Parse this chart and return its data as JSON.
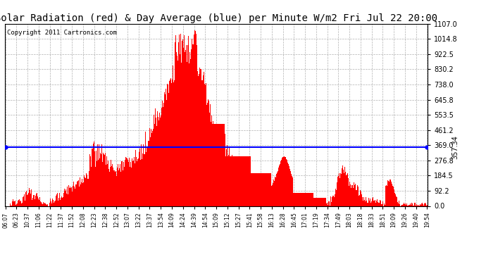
{
  "title": "Solar Radiation (red) & Day Average (blue) per Minute W/m2 Fri Jul 22 20:00",
  "copyright": "Copyright 2011 Cartronics.com",
  "y_max": 1107.0,
  "y_min": 0.0,
  "y_ticks": [
    0.0,
    92.2,
    184.5,
    276.8,
    369.0,
    461.2,
    553.5,
    645.8,
    738.0,
    830.2,
    922.5,
    1014.8,
    1107.0
  ],
  "y_tick_labels": [
    "0.0",
    "92.2",
    "184.5",
    "276.8",
    "369.0",
    "461.2",
    "553.5",
    "645.8",
    "738.0",
    "830.2",
    "922.5",
    "1014.8",
    "1107.0"
  ],
  "day_average": 357.34,
  "bar_color": "#ff0000",
  "avg_line_color": "#0000ff",
  "bg_color": "#ffffff",
  "grid_color": "#b0b0b0",
  "title_fontsize": 10,
  "copyright_fontsize": 6.5,
  "avg_label_fontsize": 7,
  "x_tick_fontsize": 5.5,
  "y_tick_fontsize": 7,
  "x_tick_labels": [
    "06:07",
    "06:23",
    "10:37",
    "11:06",
    "11:22",
    "11:37",
    "11:52",
    "12:08",
    "12:23",
    "12:38",
    "12:52",
    "13:07",
    "13:22",
    "13:37",
    "13:54",
    "14:09",
    "14:24",
    "14:39",
    "14:54",
    "15:09",
    "15:12",
    "15:27",
    "15:41",
    "15:58",
    "16:13",
    "16:28",
    "16:45",
    "17:01",
    "17:19",
    "17:34",
    "17:49",
    "18:03",
    "18:18",
    "18:33",
    "18:51",
    "19:09",
    "19:26",
    "19:40",
    "19:54"
  ]
}
